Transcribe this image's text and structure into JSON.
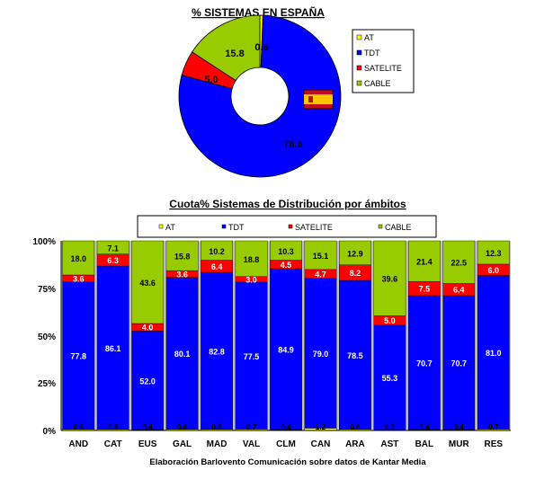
{
  "colors": {
    "at": "#FFFF00",
    "tdt": "#0000FF",
    "satelite": "#FF0000",
    "cable": "#99CC00",
    "grid_bg": "#C0C0C0",
    "border": "#000000"
  },
  "chart_data": [
    {
      "type": "pie",
      "title": "% SISTEMAS EN ESPAÑA",
      "donut": true,
      "legend": [
        "AT",
        "TDT",
        "SATELITE",
        "CABLE"
      ],
      "values": [
        0.6,
        78.6,
        5.0,
        15.8
      ],
      "value_labels": [
        "0.6",
        "78.6",
        "5.0",
        "15.8"
      ],
      "legend_placement": "right"
    },
    {
      "type": "bar",
      "stacked": true,
      "title": "Cuota% Sistemas de Distribución por ámbitos",
      "categories": [
        "AND",
        "CAT",
        "EUS",
        "GAL",
        "MAD",
        "VAL",
        "CLM",
        "CAN",
        "ARA",
        "AST",
        "BAL",
        "MUR",
        "RES"
      ],
      "series": [
        {
          "name": "AT",
          "values": [
            0.6,
            0.6,
            0.4,
            0.6,
            0.6,
            0.7,
            0.4,
            1.2,
            0.6,
            0.2,
            0.4,
            0.4,
            0.7
          ],
          "labels": [
            "0.6",
            "0.6",
            "0.4",
            "0.6",
            "0.6",
            "0.7",
            "0.4",
            "1.2",
            "0.6",
            "0.2",
            "0.4",
            "0.4",
            "0.7"
          ]
        },
        {
          "name": "TDT",
          "values": [
            77.8,
            86.1,
            52.0,
            80.1,
            82.8,
            77.5,
            84.9,
            79.0,
            78.5,
            55.3,
            70.7,
            70.7,
            81.0
          ],
          "labels": [
            "77.8",
            "86.1",
            "52.0",
            "80.1",
            "82.8",
            "77.5",
            "84.9",
            "79.0",
            "78.5",
            "55.3",
            "70.7",
            "70.7",
            "81.0"
          ]
        },
        {
          "name": "SATELITE",
          "values": [
            3.6,
            6.3,
            4.0,
            3.6,
            6.4,
            3.0,
            4.5,
            4.7,
            8.2,
            5.0,
            7.5,
            6.4,
            6.0
          ],
          "labels": [
            "3.6",
            "6.3",
            "4.0",
            "3.6",
            "6.4",
            "3.0",
            "4.5",
            "4.7",
            "8.2",
            "5.0",
            "7.5",
            "6.4",
            "6.0"
          ]
        },
        {
          "name": "CABLE",
          "values": [
            18.0,
            7.1,
            43.6,
            15.8,
            10.2,
            18.8,
            10.3,
            15.1,
            12.9,
            39.6,
            21.4,
            22.5,
            12.3
          ],
          "labels": [
            "18.0",
            "7.1",
            "43.6",
            "15.8",
            "10.2",
            "18.8",
            "10.3",
            "15.1",
            "12.9",
            "39.6",
            "21.4",
            "22.5",
            "12.3"
          ]
        }
      ],
      "ylim": [
        0,
        100
      ],
      "yticks": [
        "0%",
        "25%",
        "50%",
        "75%",
        "100%"
      ],
      "legend_placement": "top",
      "grid": false
    }
  ],
  "footer": {
    "source": "Elaboración Barlovento Comunicación sobre datos de Kantar Media"
  },
  "icons": {
    "flag": "spain-flag-icon"
  }
}
